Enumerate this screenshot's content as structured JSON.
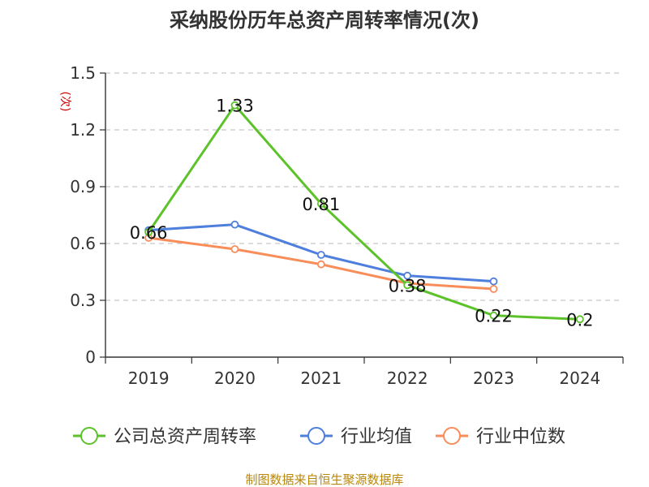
{
  "chart_data": {
    "type": "line",
    "title": "采纳股份历年总资产周转率情况(次)",
    "ylabel": "(次)",
    "categories": [
      "2019",
      "2020",
      "2021",
      "2022",
      "2023",
      "2024"
    ],
    "ylim": [
      0,
      1.5
    ],
    "yticks": [
      "0",
      "0.3",
      "0.6",
      "0.9",
      "1.2",
      "1.5"
    ],
    "grid": true,
    "legend_position": "bottom",
    "series": [
      {
        "name": "公司总资产周转率",
        "color": "#5cc22a",
        "values": [
          0.66,
          1.33,
          0.81,
          0.38,
          0.22,
          0.2
        ],
        "labels": [
          "0.66",
          "1.33",
          "0.81",
          "0.38",
          "0.22",
          "0.2"
        ]
      },
      {
        "name": "行业均值",
        "color": "#4f7fdc",
        "values": [
          0.67,
          0.7,
          0.54,
          0.43,
          0.4,
          null
        ]
      },
      {
        "name": "行业中位数",
        "color": "#f98d5a",
        "values": [
          0.63,
          0.57,
          0.49,
          0.39,
          0.36,
          null
        ]
      }
    ],
    "source": "制图数据来自恒生聚源数据库"
  }
}
